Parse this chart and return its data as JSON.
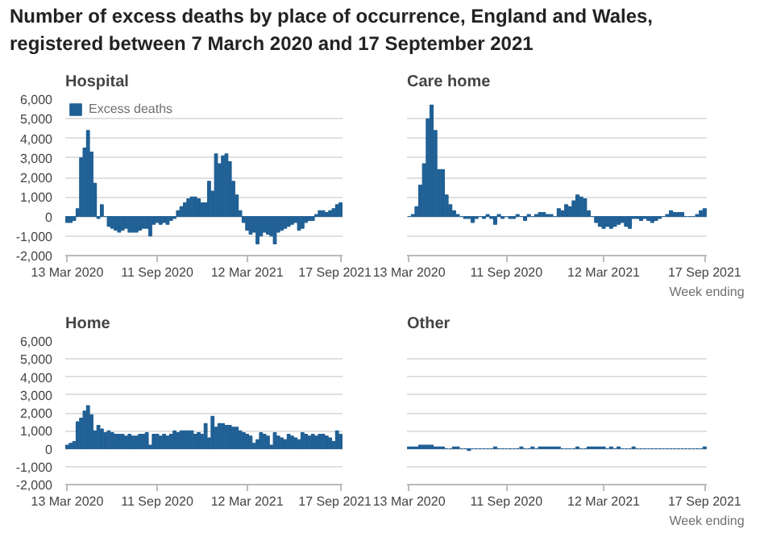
{
  "chart_data": [
    {
      "type": "bar",
      "title": "Number of excess deaths by place of occurrence, England and Wales, registered between 7 March 2020 and 17 September 2021",
      "subtitle": "Hospital",
      "legend": "top left",
      "x": [
        "2020-03-13",
        "2020-03-20",
        "2020-03-27",
        "2020-04-03",
        "2020-04-10",
        "2020-04-17",
        "2020-04-24",
        "2020-05-01",
        "2020-05-08",
        "2020-05-15",
        "2020-05-22",
        "2020-05-29",
        "2020-06-05",
        "2020-06-12",
        "2020-06-19",
        "2020-06-26",
        "2020-07-03",
        "2020-07-10",
        "2020-07-17",
        "2020-07-24",
        "2020-07-31",
        "2020-08-07",
        "2020-08-14",
        "2020-08-21",
        "2020-08-28",
        "2020-09-04",
        "2020-09-11",
        "2020-09-18",
        "2020-09-25",
        "2020-10-02",
        "2020-10-09",
        "2020-10-16",
        "2020-10-23",
        "2020-10-30",
        "2020-11-06",
        "2020-11-13",
        "2020-11-20",
        "2020-11-27",
        "2020-12-04",
        "2020-12-11",
        "2020-12-18",
        "2020-12-25",
        "2021-01-01",
        "2021-01-08",
        "2021-01-15",
        "2021-01-22",
        "2021-01-29",
        "2021-02-05",
        "2021-02-12",
        "2021-02-19",
        "2021-02-26",
        "2021-03-05",
        "2021-03-12",
        "2021-03-19",
        "2021-03-26",
        "2021-04-02",
        "2021-04-09",
        "2021-04-16",
        "2021-04-23",
        "2021-04-30",
        "2021-05-07",
        "2021-05-14",
        "2021-05-21",
        "2021-05-28",
        "2021-06-04",
        "2021-06-11",
        "2021-06-18",
        "2021-06-25",
        "2021-07-02",
        "2021-07-09",
        "2021-07-16",
        "2021-07-23",
        "2021-07-30",
        "2021-08-06",
        "2021-08-13",
        "2021-08-20",
        "2021-08-27",
        "2021-09-03",
        "2021-09-10",
        "2021-09-17"
      ],
      "xlim": [
        "2020-03-09",
        "2021-09-21"
      ],
      "xticks": [
        {
          "value": "2020-03-13",
          "label": "13 Mar 2020"
        },
        {
          "value": "2020-09-11",
          "label": "11 Sep 2020"
        },
        {
          "value": "2021-03-12",
          "label": "12 Mar 2021"
        },
        {
          "value": "2021-09-17",
          "label": "17 Sep 2021"
        }
      ],
      "ylim": [
        -2000,
        6000
      ],
      "yticks": [
        {
          "value": -2000,
          "label": "-2,000"
        },
        {
          "value": -1000,
          "label": "-1,000"
        },
        0,
        {
          "value": 1000,
          "label": "1,000"
        },
        {
          "value": 2000,
          "label": "2,000"
        },
        {
          "value": 3000,
          "label": "3,000"
        },
        {
          "value": 4000,
          "label": "4,000"
        },
        {
          "value": 5000,
          "label": "5,000"
        },
        {
          "value": 6000,
          "label": "6,000"
        }
      ],
      "grid": "y",
      "series": [
        {
          "name": "Excess deaths",
          "color": "#206095",
          "values": [
            -300,
            -300,
            -200,
            400,
            3000,
            3500,
            4400,
            3300,
            1700,
            -100,
            600,
            0,
            -500,
            -600,
            -700,
            -800,
            -700,
            -600,
            -800,
            -800,
            -800,
            -700,
            -600,
            -600,
            -1000,
            -400,
            -300,
            -400,
            -300,
            -400,
            -200,
            -100,
            300,
            500,
            700,
            900,
            1000,
            1000,
            900,
            700,
            700,
            1800,
            1300,
            3200,
            2700,
            3100,
            3200,
            2800,
            1800,
            1100,
            300,
            -300,
            -700,
            -900,
            -800,
            -1400,
            -1000,
            -800,
            -900,
            -1000,
            -1400,
            -800,
            -700,
            -600,
            -500,
            -400,
            -300,
            -700,
            -600,
            -300,
            -200,
            -200,
            100,
            300,
            300,
            200,
            300,
            400,
            600,
            700
          ]
        }
      ]
    },
    {
      "type": "bar",
      "title": "Care home",
      "xlabel": "Week ending",
      "tick_labels": "x",
      "x": [
        "2020-03-13",
        "2020-03-20",
        "2020-03-27",
        "2020-04-03",
        "2020-04-10",
        "2020-04-17",
        "2020-04-24",
        "2020-05-01",
        "2020-05-08",
        "2020-05-15",
        "2020-05-22",
        "2020-05-29",
        "2020-06-05",
        "2020-06-12",
        "2020-06-19",
        "2020-06-26",
        "2020-07-03",
        "2020-07-10",
        "2020-07-17",
        "2020-07-24",
        "2020-07-31",
        "2020-08-07",
        "2020-08-14",
        "2020-08-21",
        "2020-08-28",
        "2020-09-04",
        "2020-09-11",
        "2020-09-18",
        "2020-09-25",
        "2020-10-02",
        "2020-10-09",
        "2020-10-16",
        "2020-10-23",
        "2020-10-30",
        "2020-11-06",
        "2020-11-13",
        "2020-11-20",
        "2020-11-27",
        "2020-12-04",
        "2020-12-11",
        "2020-12-18",
        "2020-12-25",
        "2021-01-01",
        "2021-01-08",
        "2021-01-15",
        "2021-01-22",
        "2021-01-29",
        "2021-02-05",
        "2021-02-12",
        "2021-02-19",
        "2021-02-26",
        "2021-03-05",
        "2021-03-12",
        "2021-03-19",
        "2021-03-26",
        "2021-04-02",
        "2021-04-09",
        "2021-04-16",
        "2021-04-23",
        "2021-04-30",
        "2021-05-07",
        "2021-05-14",
        "2021-05-21",
        "2021-05-28",
        "2021-06-04",
        "2021-06-11",
        "2021-06-18",
        "2021-06-25",
        "2021-07-02",
        "2021-07-09",
        "2021-07-16",
        "2021-07-23",
        "2021-07-30",
        "2021-08-06",
        "2021-08-13",
        "2021-08-20",
        "2021-08-27",
        "2021-09-03",
        "2021-09-10",
        "2021-09-17"
      ],
      "xlim": [
        "2020-03-09",
        "2021-09-21"
      ],
      "xticks": [
        {
          "value": "2020-03-13",
          "label": "13 Mar 2020"
        },
        {
          "value": "2020-09-11",
          "label": "11 Sep 2020"
        },
        {
          "value": "2021-03-12",
          "label": "12 Mar 2021"
        },
        {
          "value": "2021-09-17",
          "label": "17 Sep 2021"
        }
      ],
      "ylim": [
        -2000,
        6000
      ],
      "yticks": [
        -2000,
        -1000,
        0,
        1000,
        2000,
        3000,
        4000,
        5000,
        6000
      ],
      "grid": "y",
      "series": [
        {
          "color": "#206095",
          "values": [
            0,
            100,
            500,
            1600,
            2700,
            5000,
            5700,
            4400,
            2400,
            2400,
            1100,
            600,
            300,
            100,
            0,
            -100,
            -100,
            -300,
            -100,
            0,
            -100,
            100,
            -100,
            -400,
            100,
            -100,
            0,
            -100,
            -100,
            100,
            0,
            -200,
            100,
            0,
            100,
            200,
            200,
            100,
            100,
            0,
            400,
            300,
            600,
            500,
            800,
            1100,
            1000,
            900,
            300,
            0,
            -300,
            -500,
            -600,
            -500,
            -600,
            -500,
            -400,
            -300,
            -500,
            -600,
            -100,
            -100,
            -200,
            -100,
            -200,
            -300,
            -200,
            -100,
            0,
            100,
            300,
            200,
            200,
            200,
            0,
            0,
            0,
            100,
            300,
            400
          ]
        }
      ]
    },
    {
      "type": "bar",
      "title": "Home",
      "x": [
        "2020-03-13",
        "2020-03-20",
        "2020-03-27",
        "2020-04-03",
        "2020-04-10",
        "2020-04-17",
        "2020-04-24",
        "2020-05-01",
        "2020-05-08",
        "2020-05-15",
        "2020-05-22",
        "2020-05-29",
        "2020-06-05",
        "2020-06-12",
        "2020-06-19",
        "2020-06-26",
        "2020-07-03",
        "2020-07-10",
        "2020-07-17",
        "2020-07-24",
        "2020-07-31",
        "2020-08-07",
        "2020-08-14",
        "2020-08-21",
        "2020-08-28",
        "2020-09-04",
        "2020-09-11",
        "2020-09-18",
        "2020-09-25",
        "2020-10-02",
        "2020-10-09",
        "2020-10-16",
        "2020-10-23",
        "2020-10-30",
        "2020-11-06",
        "2020-11-13",
        "2020-11-20",
        "2020-11-27",
        "2020-12-04",
        "2020-12-11",
        "2020-12-18",
        "2020-12-25",
        "2021-01-01",
        "2021-01-08",
        "2021-01-15",
        "2021-01-22",
        "2021-01-29",
        "2021-02-05",
        "2021-02-12",
        "2021-02-19",
        "2021-02-26",
        "2021-03-05",
        "2021-03-12",
        "2021-03-19",
        "2021-03-26",
        "2021-04-02",
        "2021-04-09",
        "2021-04-16",
        "2021-04-23",
        "2021-04-30",
        "2021-05-07",
        "2021-05-14",
        "2021-05-21",
        "2021-05-28",
        "2021-06-04",
        "2021-06-11",
        "2021-06-18",
        "2021-06-25",
        "2021-07-02",
        "2021-07-09",
        "2021-07-16",
        "2021-07-23",
        "2021-07-30",
        "2021-08-06",
        "2021-08-13",
        "2021-08-20",
        "2021-08-27",
        "2021-09-03",
        "2021-09-10",
        "2021-09-17"
      ],
      "xlim": [
        "2020-03-09",
        "2021-09-21"
      ],
      "xticks": [
        {
          "value": "2020-03-13",
          "label": "13 Mar 2020"
        },
        {
          "value": "2020-09-11",
          "label": "11 Sep 2020"
        },
        {
          "value": "2021-03-12",
          "label": "12 Mar 2021"
        },
        {
          "value": "2021-09-17",
          "label": "17 Sep 2021"
        }
      ],
      "ylim": [
        -2000,
        6000
      ],
      "yticks": [
        {
          "value": -2000,
          "label": "-2,000"
        },
        {
          "value": -1000,
          "label": "-1,000"
        },
        0,
        {
          "value": 1000,
          "label": "1,000"
        },
        {
          "value": 2000,
          "label": "2,000"
        },
        {
          "value": 3000,
          "label": "3,000"
        },
        {
          "value": 4000,
          "label": "4,000"
        },
        {
          "value": 5000,
          "label": "5,000"
        },
        {
          "value": 6000,
          "label": "6,000"
        }
      ],
      "grid": "y",
      "series": [
        {
          "color": "#206095",
          "values": [
            200,
            300,
            400,
            1500,
            1700,
            2100,
            2400,
            1900,
            1000,
            1300,
            1100,
            900,
            1000,
            900,
            800,
            800,
            800,
            700,
            800,
            700,
            700,
            800,
            800,
            900,
            200,
            800,
            800,
            700,
            800,
            700,
            800,
            1000,
            900,
            1000,
            1000,
            1000,
            1000,
            800,
            900,
            800,
            1400,
            600,
            1800,
            1200,
            1400,
            1400,
            1300,
            1300,
            1200,
            1200,
            1000,
            900,
            800,
            700,
            300,
            500,
            900,
            800,
            700,
            200,
            900,
            700,
            600,
            500,
            800,
            700,
            600,
            500,
            900,
            800,
            700,
            800,
            700,
            800,
            800,
            700,
            600,
            400,
            1000,
            800
          ]
        }
      ]
    },
    {
      "type": "bar",
      "title": "Other",
      "xlabel": "Week ending",
      "tick_labels": "x",
      "x": [
        "2020-03-13",
        "2020-03-20",
        "2020-03-27",
        "2020-04-03",
        "2020-04-10",
        "2020-04-17",
        "2020-04-24",
        "2020-05-01",
        "2020-05-08",
        "2020-05-15",
        "2020-05-22",
        "2020-05-29",
        "2020-06-05",
        "2020-06-12",
        "2020-06-19",
        "2020-06-26",
        "2020-07-03",
        "2020-07-10",
        "2020-07-17",
        "2020-07-24",
        "2020-07-31",
        "2020-08-07",
        "2020-08-14",
        "2020-08-21",
        "2020-08-28",
        "2020-09-04",
        "2020-09-11",
        "2020-09-18",
        "2020-09-25",
        "2020-10-02",
        "2020-10-09",
        "2020-10-16",
        "2020-10-23",
        "2020-10-30",
        "2020-11-06",
        "2020-11-13",
        "2020-11-20",
        "2020-11-27",
        "2020-12-04",
        "2020-12-11",
        "2020-12-18",
        "2020-12-25",
        "2021-01-01",
        "2021-01-08",
        "2021-01-15",
        "2021-01-22",
        "2021-01-29",
        "2021-02-05",
        "2021-02-12",
        "2021-02-19",
        "2021-02-26",
        "2021-03-05",
        "2021-03-12",
        "2021-03-19",
        "2021-03-26",
        "2021-04-02",
        "2021-04-09",
        "2021-04-16",
        "2021-04-23",
        "2021-04-30",
        "2021-05-07",
        "2021-05-14",
        "2021-05-21",
        "2021-05-28",
        "2021-06-04",
        "2021-06-11",
        "2021-06-18",
        "2021-06-25",
        "2021-07-02",
        "2021-07-09",
        "2021-07-16",
        "2021-07-23",
        "2021-07-30",
        "2021-08-06",
        "2021-08-13",
        "2021-08-20",
        "2021-08-27",
        "2021-09-03",
        "2021-09-10",
        "2021-09-17"
      ],
      "xlim": [
        "2020-03-09",
        "2021-09-21"
      ],
      "xticks": [
        {
          "value": "2020-03-13",
          "label": "13 Mar 2020"
        },
        {
          "value": "2020-09-11",
          "label": "11 Sep 2020"
        },
        {
          "value": "2021-03-12",
          "label": "12 Mar 2021"
        },
        {
          "value": "2021-09-17",
          "label": "17 Sep 2021"
        }
      ],
      "ylim": [
        -2000,
        6000
      ],
      "yticks": [
        -2000,
        -1000,
        0,
        1000,
        2000,
        3000,
        4000,
        5000,
        6000
      ],
      "grid": "y",
      "series": [
        {
          "color": "#206095",
          "values": [
            100,
            100,
            100,
            200,
            200,
            200,
            200,
            100,
            100,
            100,
            0,
            0,
            100,
            100,
            0,
            0,
            -100,
            0,
            0,
            0,
            0,
            0,
            0,
            100,
            0,
            0,
            0,
            0,
            0,
            0,
            100,
            0,
            0,
            100,
            0,
            100,
            100,
            100,
            100,
            100,
            100,
            0,
            0,
            0,
            0,
            100,
            0,
            0,
            100,
            100,
            100,
            100,
            100,
            0,
            100,
            0,
            100,
            0,
            0,
            0,
            100,
            0,
            0,
            0,
            0,
            0,
            0,
            0,
            0,
            0,
            0,
            0,
            0,
            0,
            0,
            0,
            0,
            0,
            0,
            100
          ]
        }
      ]
    }
  ]
}
